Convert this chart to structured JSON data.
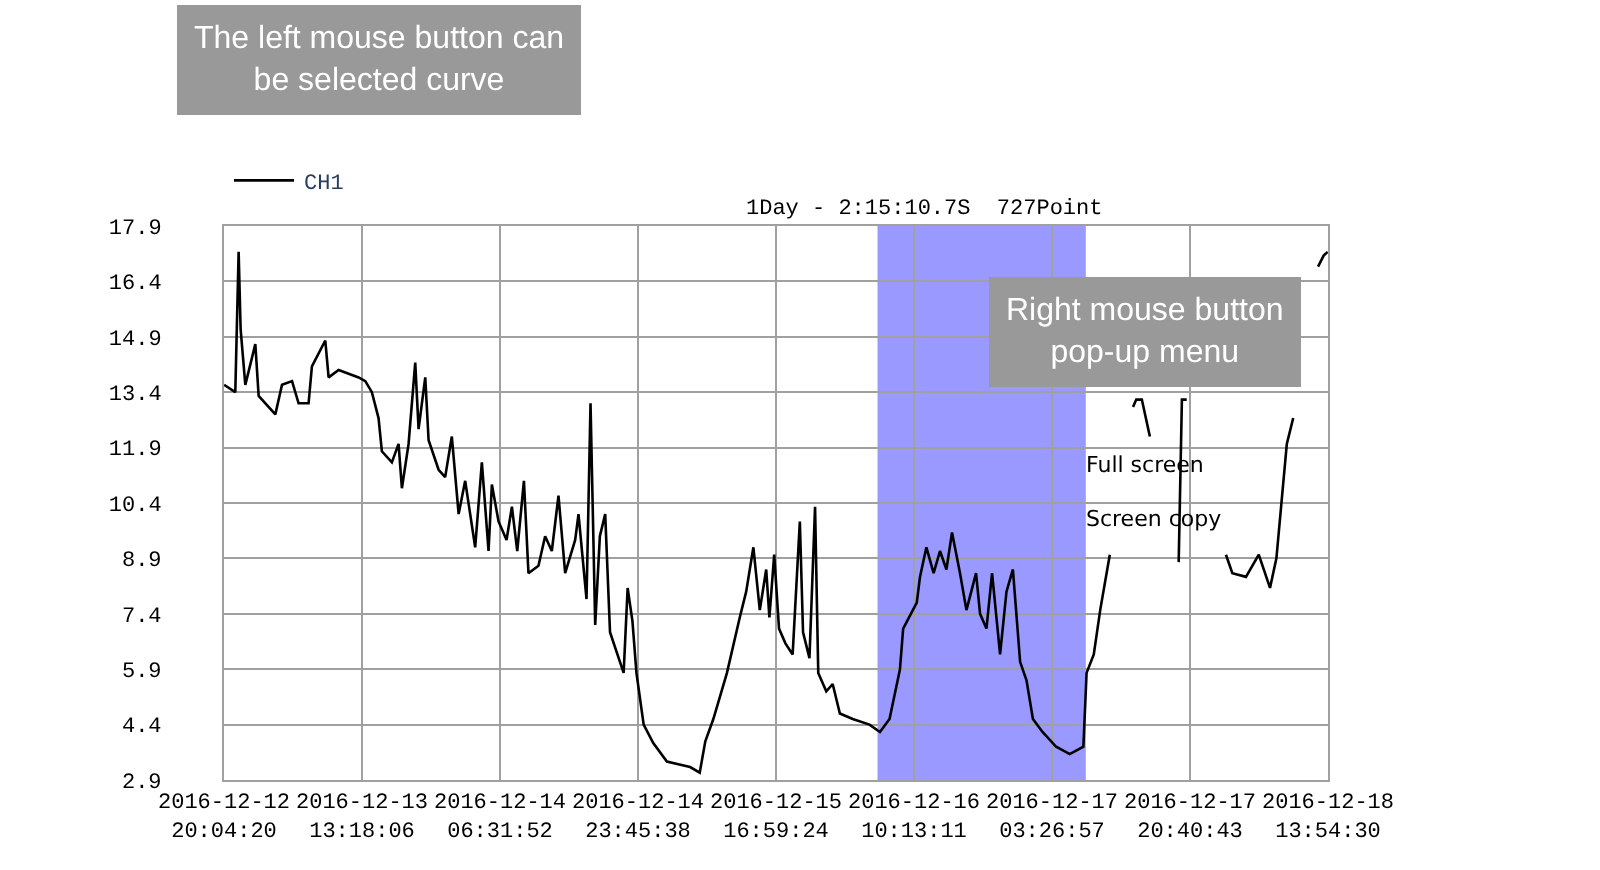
{
  "chart_data": {
    "type": "line",
    "legend": "top left",
    "grid": true,
    "marker": "none",
    "line_style": "solid",
    "annotations": [
      "The left mouse button can\nbe selected curve",
      "1Day - 2:15:10.7S  727Point",
      "Right mouse button\npop-up menu",
      "Full screen",
      "Screen copy"
    ],
    "xlim": [
      "2016-12-12T20:04:20",
      "2016-12-18T13:54:30"
    ],
    "xticks": [
      {
        "value": "2016-12-12T20:04:20",
        "label": "2016-12-12\n20:04:20"
      },
      {
        "value": "2016-12-13T13:18:06",
        "label": "2016-12-13\n13:18:06"
      },
      {
        "value": "2016-12-14T06:31:52",
        "label": "2016-12-14\n06:31:52"
      },
      {
        "value": "2016-12-14T23:45:38",
        "label": "2016-12-14\n23:45:38"
      },
      {
        "value": "2016-12-15T16:59:24",
        "label": "2016-12-15\n16:59:24"
      },
      {
        "value": "2016-12-16T10:13:11",
        "label": "2016-12-16\n10:13:11"
      },
      {
        "value": "2016-12-17T03:26:57",
        "label": "2016-12-17\n03:26:57"
      },
      {
        "value": "2016-12-17T20:40:43",
        "label": "2016-12-17\n20:40:43"
      },
      {
        "value": "2016-12-18T13:54:30",
        "label": "2016-12-18\n13:54:30"
      }
    ],
    "ylim": [
      2.9,
      17.9
    ],
    "yticks": [
      2.9,
      4.4,
      5.9,
      7.4,
      8.9,
      10.4,
      11.9,
      13.4,
      14.9,
      16.4,
      17.9
    ],
    "bands": [
      {
        "axis": "x",
        "from": "2016-12-16T05:40",
        "to": "2016-12-17T07:40",
        "color": "#9999ff"
      }
    ],
    "series": [
      {
        "name": "CH1",
        "color": "#000000",
        "x": [
          "2016-12-12T20:05",
          "2016-12-12T21:29",
          "2016-12-12T21:54",
          "2016-12-12T22:09",
          "2016-12-12T22:44",
          "2016-12-12T23:59",
          "2016-12-13T00:24",
          "2016-12-13T01:38",
          "2016-12-13T02:29",
          "2016-12-13T03:19",
          "2016-12-13T04:34",
          "2016-12-13T05:23",
          "2016-12-13T06:38",
          "2016-12-13T07:03",
          "2016-12-13T08:43",
          "2016-12-13T09:08",
          "2016-12-13T10:23",
          "2016-12-13T12:53",
          "2016-12-13T13:43",
          "2016-12-13T14:32",
          "2016-12-13T15:22",
          "2016-12-13T15:47",
          "2016-12-13T17:02",
          "2016-12-13T17:52",
          "2016-12-13T18:17",
          "2016-12-13T19:07",
          "2016-12-13T19:57",
          "2016-12-13T20:22",
          "2016-12-13T21:12",
          "2016-12-13T21:37",
          "2016-12-13T22:52",
          "2016-12-13T23:41",
          "2016-12-14T00:31",
          "2016-12-14T01:22",
          "2016-12-14T02:11",
          "2016-12-14T03:26",
          "2016-12-14T04:16",
          "2016-12-14T05:06",
          "2016-12-14T05:31",
          "2016-12-14T06:21",
          "2016-12-14T07:21",
          "2016-12-14T08:01",
          "2016-12-14T08:41",
          "2016-12-14T09:31",
          "2016-12-14T10:05",
          "2016-12-14T11:20",
          "2016-12-14T12:10",
          "2016-12-14T13:00",
          "2016-12-14T13:50",
          "2016-12-14T14:40",
          "2016-12-14T15:55",
          "2016-12-14T16:20",
          "2016-12-14T17:20",
          "2016-12-14T17:50",
          "2016-12-14T18:25",
          "2016-12-14T19:00",
          "2016-12-14T19:40",
          "2016-12-14T20:16",
          "2016-12-14T21:58",
          "2016-12-14T22:28",
          "2016-12-14T23:04",
          "2016-12-14T23:34",
          "2016-12-15T00:28",
          "2016-12-15T01:40",
          "2016-12-15T03:22",
          "2016-12-15T06:16",
          "2016-12-15T07:28",
          "2016-12-15T08:10",
          "2016-12-15T09:10",
          "2016-12-15T10:52",
          "2016-12-15T12:28",
          "2016-12-15T13:16",
          "2016-12-15T14:10",
          "2016-12-15T14:58",
          "2016-12-15T15:46",
          "2016-12-15T16:10",
          "2016-12-15T16:46",
          "2016-12-15T17:22",
          "2016-12-15T18:10",
          "2016-12-15T19:04",
          "2016-12-15T19:58",
          "2016-12-15T20:22",
          "2016-12-15T21:10",
          "2016-12-15T21:52",
          "2016-12-15T22:16",
          "2016-12-15T23:16",
          "2016-12-16T00:04",
          "2016-12-16T00:58",
          "2016-12-16T02:34",
          "2016-12-16T04:40",
          "2016-12-16T05:58",
          "2016-12-16T07:10",
          "2016-12-16T08:28",
          "2016-12-16T08:52",
          "2016-12-16T10:34",
          "2016-12-16T10:58",
          "2016-12-16T11:46",
          "2016-12-16T12:40",
          "2016-12-16T13:28",
          "2016-12-16T14:16",
          "2016-12-16T14:58",
          "2016-12-16T15:58",
          "2016-12-16T16:46",
          "2016-12-16T17:58",
          "2016-12-16T18:28",
          "2016-12-16T19:16",
          "2016-12-16T19:58",
          "2016-12-16T20:58",
          "2016-12-16T21:46",
          "2016-12-16T22:34",
          "2016-12-16T23:28",
          "2016-12-17T00:16",
          "2016-12-17T01:04",
          "2016-12-17T02:16",
          "2016-12-17T03:58",
          "2016-12-17T05:40",
          "2016-12-17T07:22",
          "2016-12-17T07:46",
          "2016-12-17T08:40",
          "2016-12-17T09:28",
          "2016-12-17T10:40",
          "2016-12-17T11:34",
          "2016-12-17T13:34",
          "2016-12-17T13:58",
          "2016-12-17T14:40",
          "2016-12-17T15:40",
          "2016-12-17T17:04",
          "2016-12-17T19:16",
          "2016-12-17T19:40",
          "2016-12-17T20:16",
          "2016-12-17T22:04",
          "2016-12-18T01:10",
          "2016-12-18T01:58",
          "2016-12-18T03:40",
          "2016-12-18T05:16",
          "2016-12-18T06:40",
          "2016-12-18T07:28",
          "2016-12-18T08:46",
          "2016-12-18T09:34",
          "2016-12-18T10:34",
          "2016-12-18T12:40",
          "2016-12-18T13:22",
          "2016-12-18T13:52"
        ],
        "values": [
          13.6,
          13.4,
          17.2,
          15.1,
          13.6,
          14.7,
          13.3,
          13.0,
          12.8,
          13.6,
          13.7,
          13.1,
          13.1,
          14.1,
          14.8,
          13.8,
          14.0,
          13.8,
          13.7,
          13.4,
          12.7,
          11.8,
          11.5,
          12.0,
          10.8,
          12.0,
          14.2,
          12.4,
          13.8,
          12.1,
          11.3,
          11.1,
          12.2,
          10.1,
          11.0,
          9.2,
          11.5,
          9.1,
          10.9,
          9.9,
          9.4,
          10.3,
          9.1,
          11.0,
          8.5,
          8.7,
          9.5,
          9.1,
          10.6,
          8.5,
          9.4,
          10.1,
          7.8,
          13.1,
          7.1,
          9.5,
          10.1,
          6.9,
          5.8,
          8.1,
          7.2,
          5.8,
          4.4,
          3.9,
          3.4,
          3.25,
          3.1,
          3.95,
          4.55,
          5.8,
          7.3,
          8.0,
          9.2,
          7.5,
          8.6,
          7.3,
          9.0,
          7.0,
          6.6,
          6.3,
          9.9,
          6.9,
          6.2,
          10.3,
          5.8,
          5.3,
          5.5,
          4.7,
          4.55,
          4.4,
          4.2,
          4.55,
          5.9,
          7.0,
          7.7,
          8.4,
          9.2,
          8.5,
          9.1,
          8.6,
          9.6,
          8.5,
          7.5,
          8.5,
          7.4,
          7.0,
          8.5,
          6.3,
          8.0,
          8.6,
          6.1,
          5.6,
          4.55,
          4.2,
          3.8,
          3.6,
          3.8,
          5.8,
          6.3,
          7.5,
          9.0,
          null,
          13.0,
          13.2,
          13.2,
          12.2,
          null,
          8.8,
          13.2,
          13.2,
          null,
          9.0,
          8.5,
          8.4,
          9.0,
          8.1,
          8.9,
          12.0,
          12.7,
          null,
          16.8,
          17.1,
          17.2
        ]
      }
    ]
  }
}
